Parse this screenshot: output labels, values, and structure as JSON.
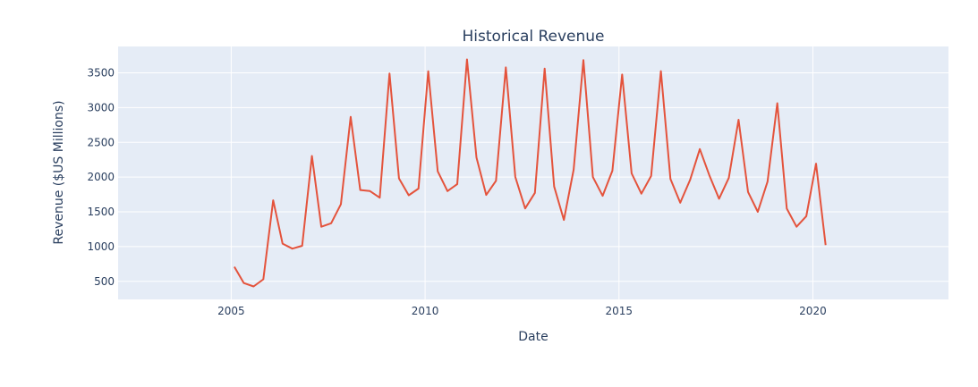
{
  "chart_data": {
    "type": "line",
    "title": "Historical Revenue",
    "xlabel": "Date",
    "ylabel": "Revenue ($US Millions)",
    "xlim": [
      "2002-02-01",
      "2023-07-01"
    ],
    "ylim": [
      240,
      3880
    ],
    "x_ticks": [
      {
        "value": "2005-01-01",
        "label": "2005"
      },
      {
        "value": "2010-01-01",
        "label": "2010"
      },
      {
        "value": "2015-01-01",
        "label": "2015"
      },
      {
        "value": "2020-01-01",
        "label": "2020"
      }
    ],
    "y_ticks": [
      500,
      1000,
      1500,
      2000,
      2500,
      3000,
      3500
    ],
    "y_tick_labels": [
      "500",
      "1000",
      "1500",
      "2000",
      "2500",
      "3000",
      "3500"
    ],
    "grid": true,
    "plot_bgcolor": "#e5ecf6",
    "gridcolor": "#ffffff",
    "series": [
      {
        "color": "#e4533c",
        "x": [
          "2005-01-31",
          "2005-04-30",
          "2005-07-31",
          "2005-10-31",
          "2006-01-31",
          "2006-04-30",
          "2006-07-31",
          "2006-10-31",
          "2007-01-31",
          "2007-04-30",
          "2007-07-31",
          "2007-10-31",
          "2008-01-31",
          "2008-04-30",
          "2008-07-31",
          "2008-10-31",
          "2009-01-31",
          "2009-04-30",
          "2009-07-31",
          "2009-10-31",
          "2010-01-31",
          "2010-04-30",
          "2010-07-31",
          "2010-10-31",
          "2011-01-31",
          "2011-04-30",
          "2011-07-31",
          "2011-10-31",
          "2012-01-31",
          "2012-04-30",
          "2012-07-31",
          "2012-10-31",
          "2013-01-31",
          "2013-04-30",
          "2013-07-31",
          "2013-10-31",
          "2014-01-31",
          "2014-04-30",
          "2014-07-31",
          "2014-10-31",
          "2015-01-31",
          "2015-04-30",
          "2015-07-31",
          "2015-10-31",
          "2016-01-31",
          "2016-04-30",
          "2016-07-31",
          "2016-10-31",
          "2017-01-31",
          "2017-04-30",
          "2017-07-31",
          "2017-10-31",
          "2018-01-31",
          "2018-04-30",
          "2018-07-31",
          "2018-10-31",
          "2019-01-31",
          "2019-04-30",
          "2019-07-31",
          "2019-10-31",
          "2020-01-31",
          "2020-04-30"
        ],
        "y": [
          709,
          475,
          426,
          530,
          1667,
          1043,
          971,
          1012,
          2304,
          1286,
          1336,
          1611,
          2866,
          1814,
          1799,
          1704,
          3492,
          1981,
          1739,
          1835,
          3524,
          2083,
          1799,
          1899,
          3693,
          2281,
          1744,
          1947,
          3579,
          2002,
          1550,
          1773,
          3562,
          1865,
          1384,
          2107,
          3684,
          2001,
          1731,
          2092,
          3476,
          2053,
          1762,
          2016,
          3525,
          1972,
          1632,
          1959,
          2403,
          2032,
          1688,
          1988,
          2825,
          1786,
          1501,
          1935,
          3063,
          1547,
          1286,
          1438,
          2194,
          1021
        ]
      }
    ]
  }
}
